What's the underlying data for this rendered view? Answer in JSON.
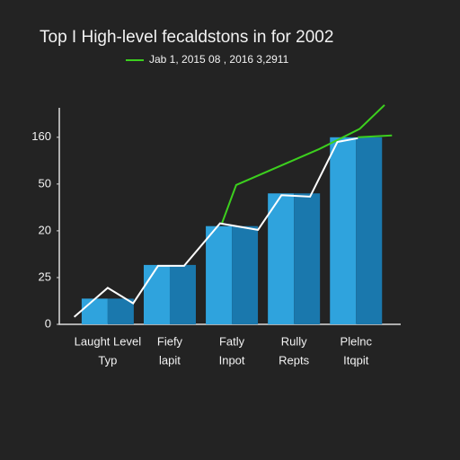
{
  "chart_data": {
    "type": "bar",
    "title": "Top I High-level fecaldstons in for 2002",
    "categories": [
      [
        "Laught Level",
        "Typ"
      ],
      [
        "Fiefy",
        "lapit"
      ],
      [
        "Fatly",
        "Inpot"
      ],
      [
        "Rully",
        "Repts"
      ],
      [
        "Plelnc",
        "Itqpit"
      ]
    ],
    "values": [
      0.55,
      1.27,
      2.1,
      2.8,
      4.0
    ],
    "colors": [
      "#2fa3dd",
      "#1a78ad"
    ],
    "xlim": [
      -0.78,
      4.72
    ],
    "ylim": [
      0,
      4.63
    ],
    "yticks": [
      {
        "value": 0,
        "label": "0"
      },
      {
        "value": 1,
        "label": "25"
      },
      {
        "value": 2,
        "label": "20"
      },
      {
        "value": 3,
        "label": "50"
      },
      {
        "value": 4,
        "label": "160"
      }
    ],
    "lines": [
      {
        "name": "Jab 1, 2015 08 , 2016 3,2911",
        "color": "#3ccf1e",
        "x": [
          1.84,
          2.07,
          3.41,
          4.06,
          4.46,
          null,
          4.03,
          4.58
        ],
        "values": [
          2.16,
          2.98,
          3.75,
          4.18,
          4.69,
          null,
          4.0,
          4.04
        ]
      },
      {
        "color": "#ffffff",
        "x": [
          -0.54,
          0,
          0.41,
          0.81,
          1.23,
          1.81,
          2.42,
          2.8,
          3.26,
          3.7,
          4.03
        ],
        "values": [
          0.16,
          0.78,
          0.45,
          1.25,
          1.25,
          2.16,
          2.02,
          2.76,
          2.73,
          3.9,
          3.98
        ]
      }
    ]
  }
}
